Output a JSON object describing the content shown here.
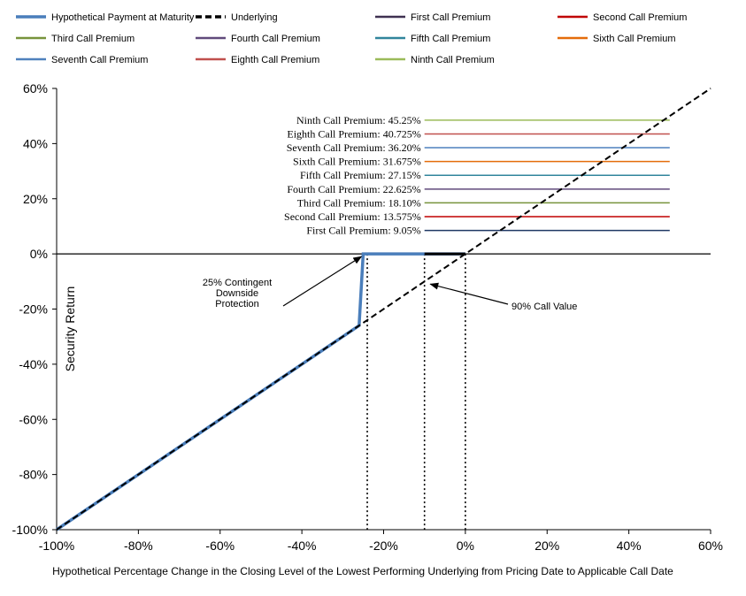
{
  "chart_data": {
    "type": "line",
    "title": "",
    "xlabel": "Hypothetical Percentage Change in the Closing Level of the Lowest Performing Underlying from Pricing Date to Applicable Call Date",
    "ylabel": "Security Return",
    "xlim": [
      -100,
      60
    ],
    "ylim": [
      -100,
      60
    ],
    "x_ticks": [
      -100,
      -80,
      -60,
      -40,
      -20,
      0,
      20,
      40,
      60
    ],
    "y_ticks": [
      -100,
      -80,
      -60,
      -40,
      -20,
      0,
      20,
      40,
      60
    ],
    "x_tick_labels": [
      "-100%",
      "-80%",
      "-60%",
      "-40%",
      "-20%",
      "0%",
      "20%",
      "40%",
      "60%"
    ],
    "y_tick_labels": [
      "-100%",
      "-80%",
      "-60%",
      "-40%",
      "-20%",
      "0%",
      "20%",
      "40%",
      "60%"
    ],
    "grid": false,
    "legend_position": "top",
    "legend": [
      {
        "name": "Hypothetical Payment at Maturity",
        "color": "#4a7ebb",
        "style": "solid-thick"
      },
      {
        "name": "Underlying",
        "color": "#000000",
        "style": "dashed-thick"
      },
      {
        "name": "First Call Premium",
        "color": "#3f3151",
        "style": "solid"
      },
      {
        "name": "Second Call Premium",
        "color": "#c00000",
        "style": "solid"
      },
      {
        "name": "Third Call Premium",
        "color": "#77933c",
        "style": "solid"
      },
      {
        "name": "Fourth Call Premium",
        "color": "#604a7b",
        "style": "solid"
      },
      {
        "name": "Fifth Call Premium",
        "color": "#31859c",
        "style": "solid"
      },
      {
        "name": "Sixth Call Premium",
        "color": "#e46c0a",
        "style": "solid"
      },
      {
        "name": "Seventh Call Premium",
        "color": "#4f81bd",
        "style": "solid"
      },
      {
        "name": "Eighth Call Premium",
        "color": "#c0504d",
        "style": "solid"
      },
      {
        "name": "Ninth Call Premium",
        "color": "#9bbb59",
        "style": "solid"
      }
    ],
    "series": [
      {
        "name": "Hypothetical Payment at Maturity",
        "color": "#4a7ebb",
        "points": [
          [
            -100,
            -100
          ],
          [
            -26,
            -26
          ],
          [
            -25,
            0
          ],
          [
            0,
            0
          ]
        ]
      },
      {
        "name": "Underlying",
        "color": "#000000",
        "points": [
          [
            -100,
            -100
          ],
          [
            60,
            60
          ]
        ]
      }
    ],
    "premiums": [
      {
        "name": "Ninth Call Premium",
        "label": "Ninth Call Premium: 45.25%",
        "value": 45.25,
        "display_level": 48.5,
        "color": "#9bbb59"
      },
      {
        "name": "Eighth Call Premium",
        "label": "Eighth Call Premium: 40.725%",
        "value": 40.725,
        "display_level": 43.5,
        "color": "#c0504d"
      },
      {
        "name": "Seventh Call Premium",
        "label": "Seventh Call Premium: 36.20%",
        "value": 36.2,
        "display_level": 38.5,
        "color": "#4f81bd"
      },
      {
        "name": "Sixth Call Premium",
        "label": "Sixth Call Premium: 31.675%",
        "value": 31.675,
        "display_level": 33.5,
        "color": "#e46c0a"
      },
      {
        "name": "Fifth Call Premium",
        "label": "Fifth Call Premium: 27.15%",
        "value": 27.15,
        "display_level": 28.5,
        "color": "#31859c"
      },
      {
        "name": "Fourth Call Premium",
        "label": "Fourth Call Premium: 22.625%",
        "value": 22.625,
        "display_level": 23.5,
        "color": "#604a7b"
      },
      {
        "name": "Third Call Premium",
        "label": "Third Call Premium: 18.10%",
        "value": 18.1,
        "display_level": 18.5,
        "color": "#77933c"
      },
      {
        "name": "Second Call Premium",
        "label": "Second Call Premium: 13.575%",
        "value": 13.575,
        "display_level": 13.5,
        "color": "#c00000"
      },
      {
        "name": "First Call Premium",
        "label": "First Call Premium: 9.05%",
        "value": 9.05,
        "display_level": 8.5,
        "color": "#1f3864"
      }
    ],
    "premium_x_range": [
      -10,
      50
    ],
    "vertical_markers": [
      {
        "x": -24,
        "from_y": -100,
        "to_y": 0
      },
      {
        "x": -10,
        "from_y": -100,
        "to_y": 0
      },
      {
        "x": 0,
        "from_y": -100,
        "to_y": 0
      }
    ],
    "annotations": [
      {
        "name": "contingent-protection",
        "lines": [
          "25% Contingent",
          "Downside",
          "Protection"
        ],
        "arrow_to": [
          -25,
          0
        ]
      },
      {
        "name": "call-value",
        "lines": [
          "90% Call Value"
        ],
        "arrow_to": [
          -9,
          -10
        ]
      }
    ]
  }
}
